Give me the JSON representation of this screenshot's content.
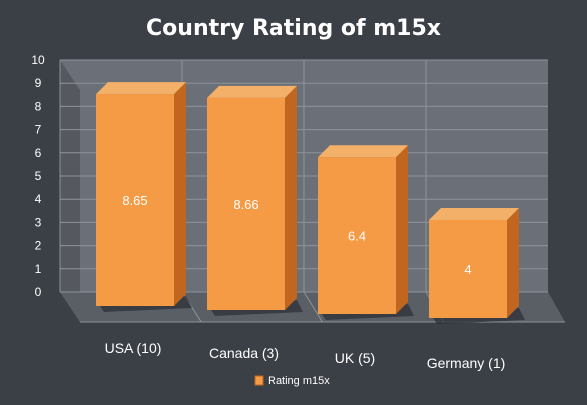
{
  "chart_data": {
    "type": "bar",
    "title": "Country Rating of m15x",
    "categories": [
      "USA (10)",
      "Canada (3)",
      "UK (5)",
      "Germany (1)"
    ],
    "series": [
      {
        "name": "Rating m15x",
        "values": [
          8.65,
          8.66,
          6.4,
          4
        ]
      }
    ],
    "data_labels": [
      "8.65",
      "8.66",
      "6.4",
      "4"
    ],
    "y_ticks": [
      "0",
      "1",
      "2",
      "3",
      "4",
      "5",
      "6",
      "7",
      "8",
      "9",
      "10"
    ],
    "ylim": [
      0,
      10
    ],
    "grid": true,
    "legend_position": "bottom",
    "style": "3d-column",
    "colors": {
      "background": "#3b3f46",
      "plot_wall": "#6b7078",
      "floor": "#5a5f66",
      "gridline": "#8e939a",
      "bar_front": "#f59a45",
      "bar_side": "#c0661e",
      "bar_top": "#f3b068"
    }
  }
}
